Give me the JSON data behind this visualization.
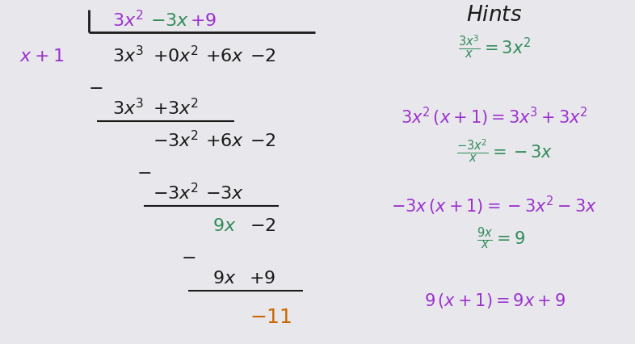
{
  "bg_color": "#e8e8ec",
  "purple": "#9b30d0",
  "green": "#2e8b57",
  "black": "#1a1a1a",
  "orange": "#cc6600",
  "fs": 16,
  "fsh": 15
}
